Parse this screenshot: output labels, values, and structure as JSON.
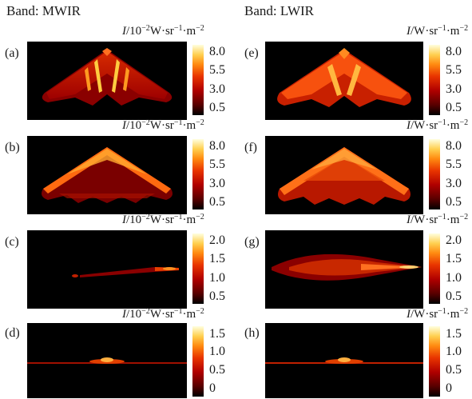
{
  "columns": [
    {
      "title": "Band: MWIR",
      "unit": {
        "italic": "I",
        "pre": "/10",
        "exp1": "−2",
        "mid": "W·sr",
        "exp2": "−1",
        "mid2": "·m",
        "exp3": "−2"
      }
    },
    {
      "title": "Band: LWIR",
      "unit": {
        "italic": "I",
        "pre": "/",
        "exp1": "",
        "mid": "W·sr",
        "exp2": "−1",
        "mid2": "·m",
        "exp3": "−2"
      }
    }
  ],
  "panels": [
    {
      "label": "(a)",
      "ticks": [
        "8.0",
        "5.5",
        "3.0",
        "0.5"
      ]
    },
    {
      "label": "(b)",
      "ticks": [
        "8.0",
        "5.5",
        "3.0",
        "0.5"
      ]
    },
    {
      "label": "(c)",
      "ticks": [
        "2.0",
        "1.5",
        "1.0",
        "0.5"
      ]
    },
    {
      "label": "(d)",
      "ticks": [
        "1.5",
        "1.0",
        "0.5",
        "0"
      ]
    },
    {
      "label": "(e)",
      "ticks": [
        "8.0",
        "5.5",
        "3.0",
        "0.5"
      ]
    },
    {
      "label": "(f)",
      "ticks": [
        "8.0",
        "5.5",
        "3.0",
        "0.5"
      ]
    },
    {
      "label": "(g)",
      "ticks": [
        "2.0",
        "1.5",
        "1.0",
        "0.5"
      ]
    },
    {
      "label": "(h)",
      "ticks": [
        "1.5",
        "1.0",
        "0.5",
        "0"
      ]
    }
  ]
}
